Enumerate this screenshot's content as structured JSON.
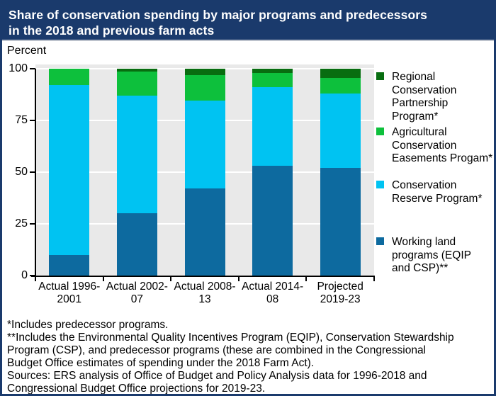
{
  "header": {
    "title_line1": "Share of conservation spending by major programs and predecessors",
    "title_line2": "in the 2018 and previous farm acts"
  },
  "chart_data": {
    "type": "bar",
    "stacked": true,
    "title": "Share of conservation spending by major programs and predecessors in the 2018 and previous farm acts",
    "ylabel": "Percent",
    "xlabel": "",
    "ylim": [
      0,
      100
    ],
    "yticks": [
      0,
      25,
      50,
      75,
      100
    ],
    "grid": true,
    "legend_position": "right",
    "categories": [
      "Actual 1996-2001",
      "Actual 2002-07",
      "Actual 2008-13",
      "Actual 2014-08",
      "Projected 2019-23"
    ],
    "series": [
      {
        "name": "Working land programs (EQIP and CSP)**",
        "color": "#0d6a9f",
        "values": [
          10,
          30,
          42,
          53,
          52
        ]
      },
      {
        "name": "Conservation Reserve Program*",
        "color": "#00c3f2",
        "values": [
          82,
          57,
          42.5,
          38,
          36
        ]
      },
      {
        "name": "Agricultural Conservation Easements Progam*",
        "color": "#0dc03c",
        "values": [
          8,
          11.5,
          12.5,
          7,
          7.5
        ]
      },
      {
        "name": "Regional Conservation Partnership Program*",
        "color": "#086d10",
        "values": [
          0,
          1.5,
          3,
          2,
          4.5
        ]
      }
    ]
  },
  "legend": {
    "items": [
      {
        "color": "#086d10",
        "lines": [
          "Regional",
          "Conservation",
          "Partnership",
          "Program*"
        ]
      },
      {
        "color": "#0dc03c",
        "lines": [
          "Agricultural",
          "Conservation",
          "Easements Progam*"
        ]
      },
      {
        "color": "#00c3f2",
        "lines": [
          "Conservation",
          "Reserve Program*"
        ]
      },
      {
        "color": "#0d6a9f",
        "lines": [
          "Working land",
          "programs (EQIP",
          "and CSP)**"
        ]
      }
    ]
  },
  "footnotes": {
    "lines": [
      "*Includes predecessor programs.",
      "**Includes the Environmental Quality Incentives Program (EQIP), Conservation Stewardship",
      "Program (CSP), and predecessor programs (these are combined in the Congressional",
      "Budget Office estimates of spending under the 2018 Farm Act).",
      "Sources: ERS analysis of Office of Budget and Policy Analysis data for 1996-2018 and",
      "Congressional Budget Office projections for 2019-23."
    ]
  },
  "colors": {
    "navy": "#1a3a6c",
    "plot_background": "#e9e9e9",
    "gridline": "#ffffff",
    "working_land_blue": "#0d6a9f",
    "crp_cyan": "#00c3f2",
    "acep_green": "#0dc03c",
    "rcpp_dark_green": "#086d10"
  }
}
